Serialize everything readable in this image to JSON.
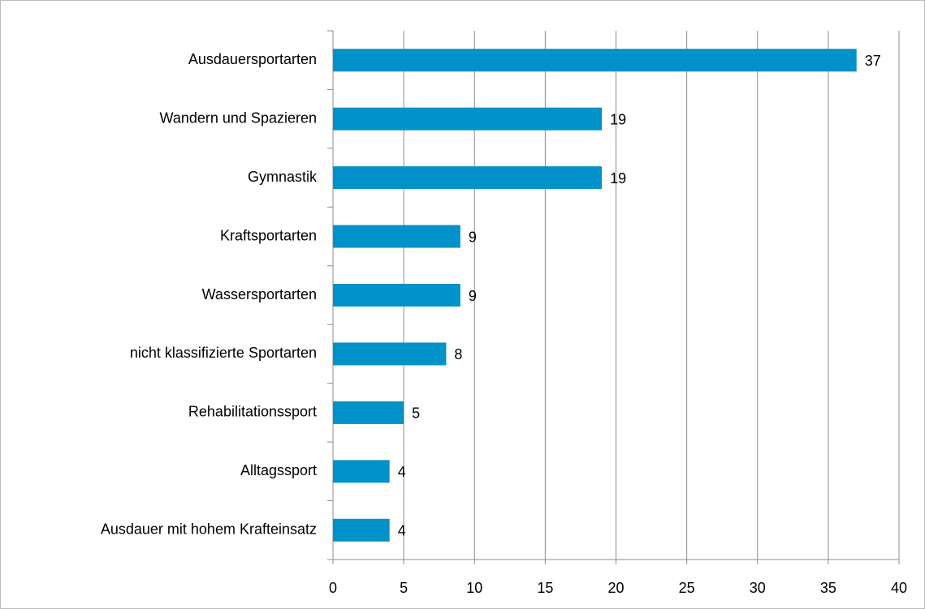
{
  "chart_data": {
    "type": "barh",
    "categories": [
      "Ausdauersportarten",
      "Wandern und Spazieren",
      "Gymnastik",
      "Kraftsportarten",
      "Wassersportarten",
      "nicht klassifizierte Sportarten",
      "Rehabilitationssport",
      "Alltagssport",
      "Ausdauer mit hohem Krafteinsatz"
    ],
    "values": [
      37,
      19,
      19,
      9,
      9,
      8,
      5,
      4,
      4
    ],
    "color": "#0092c8",
    "xlim": [
      0,
      40
    ],
    "xticks": [
      0,
      5,
      10,
      15,
      20,
      25,
      30,
      35,
      40
    ],
    "grid": true
  }
}
